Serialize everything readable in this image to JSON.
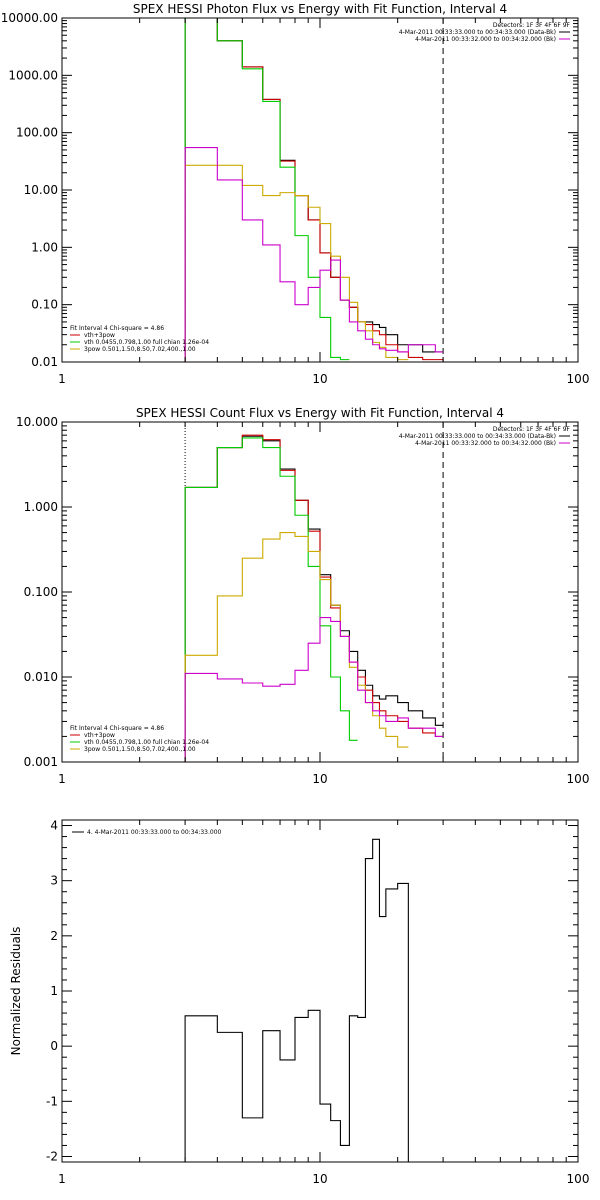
{
  "chart_data": [
    {
      "type": "line",
      "title": "SPEX HESSI Photon Flux vs Energy with Fit Function, Interval 4",
      "xscale": "log",
      "yscale": "log",
      "xlim": [
        1,
        100
      ],
      "ylim": [
        0.01,
        10000
      ],
      "x_tick_labels": [
        "1",
        "10",
        "100"
      ],
      "y_tick_labels": [
        "0.01",
        "0.10",
        "1.00",
        "10.00",
        "100.00",
        "1000.00",
        "10000.00"
      ],
      "xlabel": "",
      "ylabel": "",
      "vertical_lines": [
        {
          "x": 3,
          "style": "dotted"
        },
        {
          "x": 30,
          "style": "dashed"
        }
      ],
      "legend_top": {
        "position": "top-right",
        "header": "Detectors: 1F 3F 4F 6F 9F",
        "entries": [
          {
            "label": "4-Mar-2011 00:33:33.000 to 00:34:33.000 (Data-Bk)",
            "color": "#000000"
          },
          {
            "label": "4-Mar-2011 00:33:32.000 to 00:34:32.000 (Bk)",
            "color": "#cc00cc"
          }
        ]
      },
      "legend_bottom": {
        "position": "bottom-left",
        "header": "Fit Interval 4   Chi-square = 4.86",
        "entries": [
          {
            "label": "vth+3pow",
            "color": "#cc0000"
          },
          {
            "label": "vth 0.0455,0.798,1.00  full chian 1.26e-04",
            "color": "#00cc00"
          },
          {
            "label": "3pow 0.501,1.50,8.50,7.02,400.,1.00",
            "color": "#ccaa00"
          }
        ]
      },
      "series": [
        {
          "name": "Data-Bk",
          "color": "#000000",
          "step_edges": [
            3,
            3.5,
            4,
            5,
            6,
            7,
            8,
            9,
            10,
            11,
            12,
            13,
            14,
            15,
            16,
            17,
            18,
            20,
            22,
            25,
            28,
            30
          ],
          "values": [
            10000,
            10000,
            4000,
            1400,
            380,
            33,
            8,
            3,
            0.8,
            0.3,
            0.12,
            0.09,
            0.05,
            0.05,
            0.045,
            0.04,
            0.03,
            0.02,
            0.02,
            0.015,
            0.015
          ]
        },
        {
          "name": "vth+3pow",
          "color": "#cc0000",
          "step_edges": [
            3,
            3.5,
            4,
            5,
            6,
            7,
            8,
            9,
            10,
            11,
            12,
            13,
            14,
            15,
            16,
            17,
            18,
            20,
            22,
            25,
            28,
            30
          ],
          "values": [
            10000,
            10000,
            4000,
            1400,
            380,
            32,
            8,
            3,
            0.8,
            0.3,
            0.12,
            0.09,
            0.05,
            0.045,
            0.035,
            0.03,
            0.02,
            0.015,
            0.012,
            0.011,
            0.011
          ]
        },
        {
          "name": "vth",
          "color": "#00cc00",
          "step_edges": [
            3,
            3.5,
            4,
            5,
            6,
            7,
            8,
            9,
            10,
            11,
            12,
            13
          ],
          "values": [
            10000,
            10000,
            4000,
            1300,
            350,
            25,
            1.6,
            0.3,
            0.06,
            0.012,
            0.011
          ]
        },
        {
          "name": "3pow",
          "color": "#ccaa00",
          "step_edges": [
            3,
            4,
            5,
            6,
            7,
            8,
            9,
            10,
            11,
            12,
            13,
            14,
            15,
            16,
            17,
            18,
            20,
            22
          ],
          "values": [
            27,
            27,
            12,
            8,
            9,
            8,
            5,
            2.6,
            0.7,
            0.3,
            0.11,
            0.05,
            0.035,
            0.022,
            0.018,
            0.012,
            0.011
          ]
        },
        {
          "name": "Bk",
          "color": "#cc00cc",
          "step_edges": [
            3,
            4,
            5,
            6,
            7,
            8,
            9,
            10,
            11,
            12,
            13,
            14,
            15,
            16,
            17,
            18,
            20,
            22,
            25,
            28,
            30
          ],
          "values": [
            55,
            15,
            3,
            1.1,
            0.25,
            0.1,
            0.2,
            0.4,
            0.6,
            0.12,
            0.05,
            0.035,
            0.025,
            0.02,
            0.017,
            0.016,
            0.015,
            0.02,
            0.02,
            0.015
          ]
        }
      ]
    },
    {
      "type": "line",
      "title": "SPEX HESSI Count Flux vs Energy with Fit Function, Interval 4",
      "xscale": "log",
      "yscale": "log",
      "xlim": [
        1,
        100
      ],
      "ylim": [
        0.001,
        10
      ],
      "x_tick_labels": [
        "1",
        "10",
        "100"
      ],
      "y_tick_labels": [
        "0.001",
        "0.010",
        "0.100",
        "1.000",
        "10.000"
      ],
      "xlabel": "",
      "ylabel": "",
      "vertical_lines": [
        {
          "x": 3,
          "style": "dotted"
        },
        {
          "x": 30,
          "style": "dashed"
        }
      ],
      "legend_top": {
        "position": "top-right",
        "header": "Detectors: 1F 3F 4F 6F 9F",
        "entries": [
          {
            "label": "4-Mar-2011 00:33:33.000 to 00:34:33.000 (Data-Bk)",
            "color": "#000000"
          },
          {
            "label": "4-Mar-2011 00:33:32.000 to 00:34:32.000 (Bk)",
            "color": "#cc00cc"
          }
        ]
      },
      "legend_bottom": {
        "position": "bottom-left",
        "header": "Fit Interval 4   Chi-square = 4.86",
        "entries": [
          {
            "label": "vth+3pow",
            "color": "#cc0000"
          },
          {
            "label": "vth 0.0455,0.798,1.00  full chian 1.26e-04",
            "color": "#00cc00"
          },
          {
            "label": "3pow 0.501,1.50,8.50,7.02,400.,1.00",
            "color": "#ccaa00"
          }
        ]
      },
      "series": [
        {
          "name": "Data-Bk",
          "color": "#000000",
          "step_edges": [
            3,
            4,
            5,
            6,
            7,
            8,
            9,
            10,
            11,
            12,
            13,
            14,
            15,
            16,
            17,
            18,
            20,
            22,
            25,
            28,
            30
          ],
          "values": [
            1.7,
            5,
            6.8,
            6,
            2.8,
            1.2,
            0.55,
            0.16,
            0.07,
            0.035,
            0.02,
            0.012,
            0.008,
            0.006,
            0.0055,
            0.006,
            0.005,
            0.004,
            0.0033,
            0.0027
          ]
        },
        {
          "name": "vth+3pow",
          "color": "#cc0000",
          "step_edges": [
            3,
            4,
            5,
            6,
            7,
            8,
            9,
            10,
            11,
            12,
            13,
            14,
            15,
            16,
            17,
            18,
            20,
            22,
            25,
            28,
            30
          ],
          "values": [
            1.7,
            5,
            7.0,
            6.2,
            2.7,
            1.2,
            0.52,
            0.15,
            0.065,
            0.03,
            0.015,
            0.01,
            0.007,
            0.005,
            0.004,
            0.0035,
            0.003,
            0.0025,
            0.0022,
            0.002
          ]
        },
        {
          "name": "vth",
          "color": "#00cc00",
          "step_edges": [
            3,
            4,
            5,
            6,
            7,
            8,
            9,
            10,
            11,
            12,
            13,
            14
          ],
          "values": [
            1.7,
            5,
            6.5,
            5,
            2.3,
            0.8,
            0.2,
            0.04,
            0.01,
            0.004,
            0.0018
          ]
        },
        {
          "name": "3pow",
          "color": "#ccaa00",
          "step_edges": [
            3,
            3.5,
            4,
            5,
            6,
            7,
            8,
            9,
            10,
            11,
            12,
            13,
            14,
            15,
            16,
            17,
            18,
            20,
            22
          ],
          "values": [
            0.018,
            0.018,
            0.09,
            0.25,
            0.42,
            0.5,
            0.45,
            0.3,
            0.14,
            0.07,
            0.03,
            0.013,
            0.008,
            0.005,
            0.0035,
            0.0025,
            0.002,
            0.0015
          ]
        },
        {
          "name": "Bk",
          "color": "#cc00cc",
          "step_edges": [
            3,
            3.5,
            4,
            5,
            6,
            7,
            8,
            9,
            10,
            11,
            12,
            13,
            14,
            15,
            16,
            17,
            18,
            20,
            22,
            25,
            28,
            30
          ],
          "values": [
            0.011,
            0.011,
            0.0095,
            0.0085,
            0.0078,
            0.0082,
            0.012,
            0.025,
            0.05,
            0.045,
            0.03,
            0.015,
            0.007,
            0.005,
            0.004,
            0.0035,
            0.003,
            0.0033,
            0.0025,
            0.0025,
            0.002
          ]
        }
      ]
    },
    {
      "type": "line",
      "title": "",
      "xscale": "log",
      "yscale": "linear",
      "xlim": [
        1,
        100
      ],
      "ylim": [
        -2.1,
        4.1
      ],
      "x_tick_labels": [
        "1",
        "10",
        "100"
      ],
      "y_tick_labels": [
        "-2",
        "-1",
        "0",
        "1",
        "2",
        "3",
        "4"
      ],
      "xlabel": "",
      "ylabel": "Normalized Residuals",
      "legend_top": {
        "position": "top-left",
        "header": "",
        "entries": [
          {
            "label": "4.  4-Mar-2011 00:33:33.000 to 00:34:33.000",
            "color": "#000000"
          }
        ]
      },
      "series": [
        {
          "name": "4.  4-Mar-2011 00:33:33.000 to 00:34:33.000",
          "color": "#000000",
          "step_edges": [
            3,
            4,
            5,
            6,
            7,
            8,
            9,
            10,
            11,
            12,
            13,
            14,
            15,
            16,
            17,
            18,
            20,
            22,
            25,
            28,
            30
          ],
          "values": [
            0.55,
            0.25,
            -1.3,
            0.28,
            -0.25,
            0.52,
            0.65,
            -1.05,
            -1.35,
            -1.8,
            0.55,
            0.52,
            3.4,
            3.75,
            2.35,
            2.85,
            2.95,
            -2.1,
            -2.1,
            -2.1
          ],
          "start_value": -2.1
        }
      ]
    }
  ]
}
